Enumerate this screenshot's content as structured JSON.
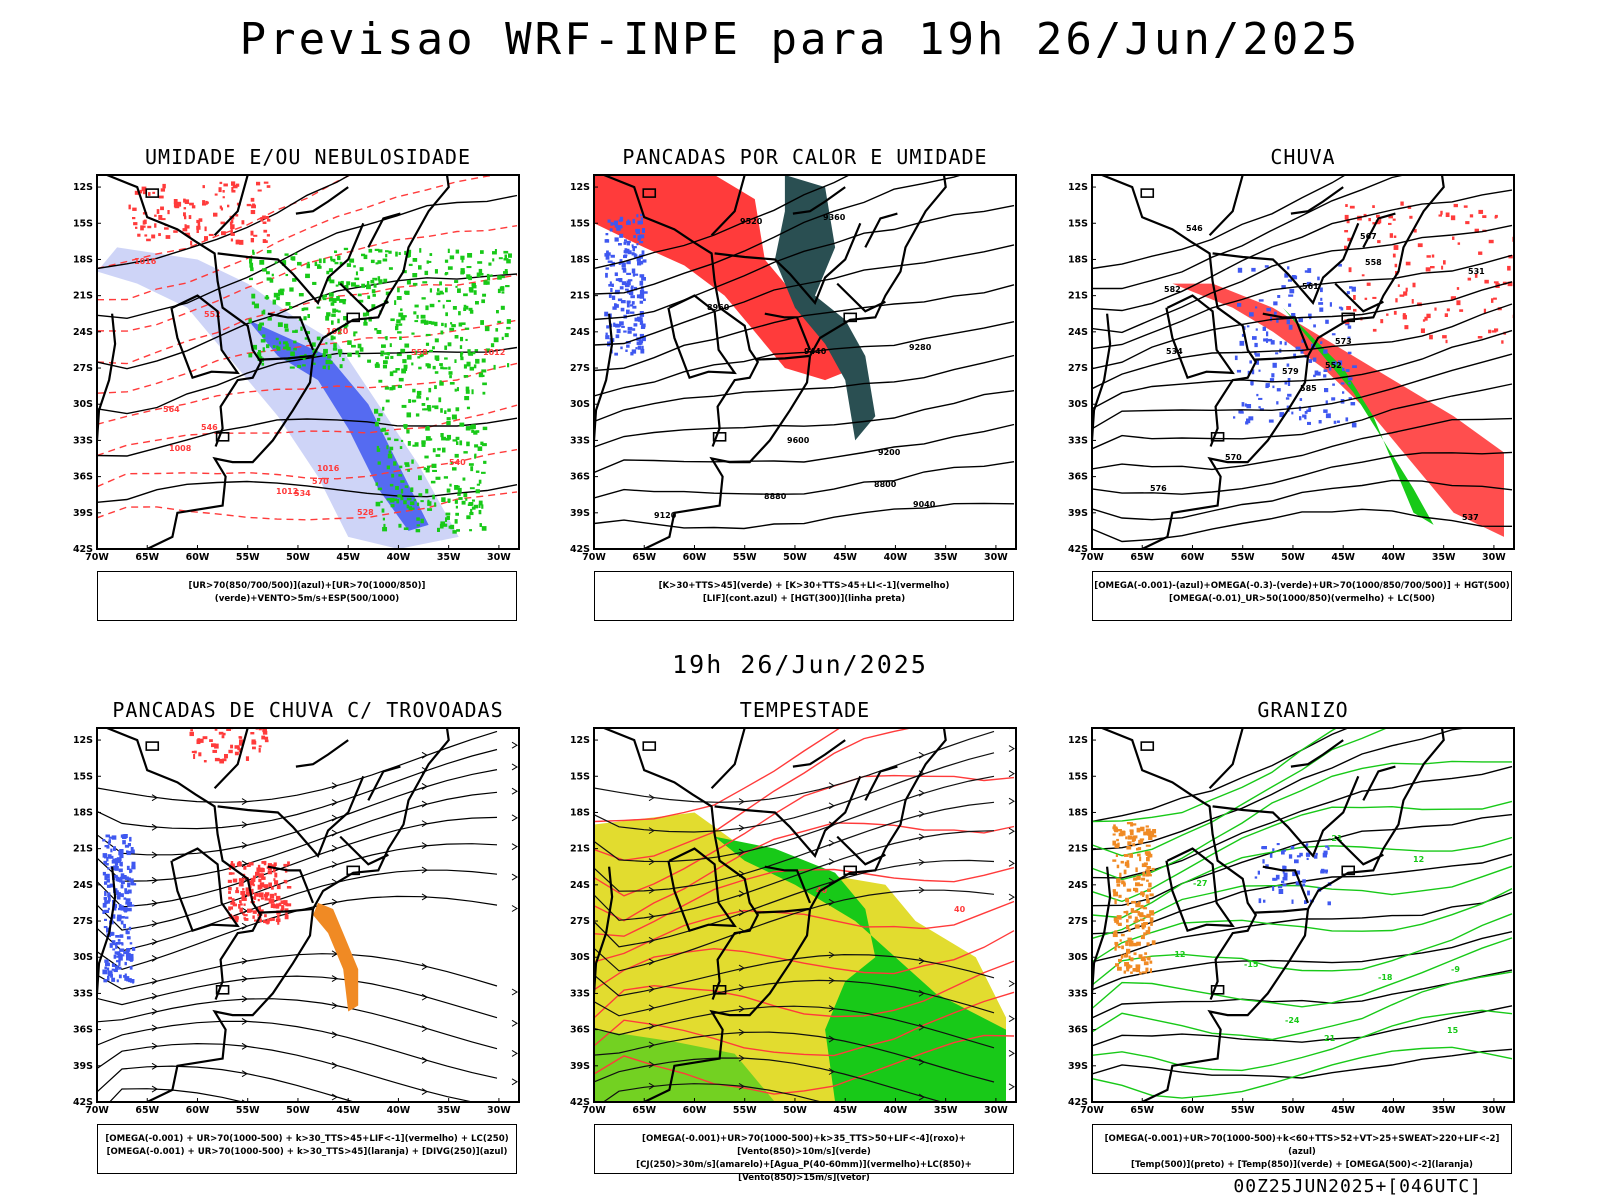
{
  "header": {
    "title": "Previsao WRF-INPE  para 19h 26/Jun/2025"
  },
  "mid_title": "19h 26/Jun/2025",
  "footer_stamp": "00Z25JUN2025+[046UTC]",
  "axes": {
    "lat_labels": [
      "12S",
      "15S",
      "18S",
      "21S",
      "24S",
      "27S",
      "30S",
      "33S",
      "36S",
      "39S",
      "42S"
    ],
    "lon_labels": [
      "70W",
      "65W",
      "60W",
      "55W",
      "50W",
      "45W",
      "40W",
      "35W",
      "30W"
    ]
  },
  "colors": {
    "red": "#ff3b3b",
    "green": "#18c918",
    "blue": "#3f58f0",
    "lightblue": "#c6ccf6",
    "darkteal": "#2a4f52",
    "yellow": "#e2dc2f",
    "orange": "#f08a24"
  },
  "panels": [
    {
      "id": "umidade",
      "title": "UMIDADE E/OU NEBULOSIDADE",
      "caption": [
        "[UR>70(850/700/500)](azul)+[UR>70(1000/850)](verde)+VENTO>5m/s+ESP(500/1000)"
      ],
      "contour_labels": [
        "1012",
        "1016",
        "1020",
        "1016",
        "1012",
        "1008",
        "570",
        "564",
        "558",
        "552",
        "546",
        "540",
        "534",
        "528"
      ]
    },
    {
      "id": "pancadas-calor",
      "title": "PANCADAS POR CALOR E UMIDADE",
      "caption": [
        "[K>30+TTS>45](verde)  +  [K>30+TTS>45+LI<-1](vermelho)",
        "[LIF](cont.azul)  +  [HGT(300)](linha preta)"
      ],
      "contour_labels": [
        "9600",
        "9520",
        "9440",
        "9360",
        "9280",
        "9200",
        "9120",
        "9040",
        "8960",
        "8880",
        "8800"
      ]
    },
    {
      "id": "chuva",
      "title": "CHUVA",
      "caption": [
        "[OMEGA(-0.001)-(azul)+OMEGA(-0.3)-(verde)+UR>70(1000/850/700/500)]  +  HGT(500)",
        "[OMEGA(-0.01)_UR>50(1000/850)(vermelho)  +  LC(500)"
      ],
      "contour_labels": [
        "585",
        "582",
        "579",
        "576",
        "573",
        "570",
        "567",
        "561",
        "558",
        "552",
        "546",
        "537",
        "534",
        "531"
      ]
    },
    {
      "id": "trovoadas",
      "title": "PANCADAS DE CHUVA C/ TROVOADAS",
      "caption": [
        "[OMEGA(-0.001)  +  UR>70(1000-500)  +  k>30_TTS>45+LIF<-1](vermelho)  +  LC(250)",
        "[OMEGA(-0.001)  +  UR>70(1000-500)  +  k>30_TTS>45](laranja)  +  [DIVG(250)](azul)"
      ],
      "contour_labels": []
    },
    {
      "id": "tempestade",
      "title": "TEMPESTADE",
      "caption": [
        "[OMEGA(-0.001)+UR>70(1000-500)+k>35_TTS>50+LIF<-4](roxo)+[Vento(850)>10m/s](verde)",
        "[CJ(250)>30m/s](amarelo)+[Agua_P(40-60mm)](vermelho)+LC(850)+[Vento(850)>15m/s](vetor)"
      ],
      "contour_labels": [
        "40",
        "40"
      ]
    },
    {
      "id": "granizo",
      "title": "GRANIZO",
      "caption": [
        "[OMEGA(-0.001)+UR>70(1000-500)+k<60+TTS>52+VT>25+SWEAT>220+LIF<-2](azul)",
        "[Temp(500)](preto)  +  [Temp(850)](verde)  +  [OMEGA(500)<-2](laranja)"
      ],
      "contour_labels": [
        "-21",
        "-18",
        "-15",
        "-12",
        "-27",
        "-24",
        "12",
        "15",
        "21",
        "-9"
      ]
    }
  ]
}
